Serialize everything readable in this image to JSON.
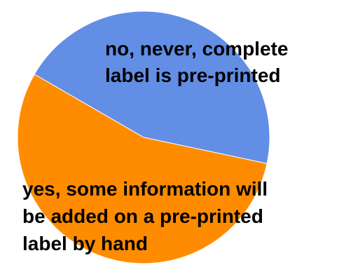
{
  "chart_data": {
    "type": "pie",
    "slices": [
      {
        "label_lines": [
          "no, never, complete",
          "label is pre-printed"
        ],
        "value": 45,
        "color": "#628ee5"
      },
      {
        "label_lines": [
          "yes, some information will",
          "be added on a pre-printed",
          "label by hand"
        ],
        "value": 55,
        "color": "#ff8c00"
      }
    ],
    "legend": "none",
    "grid": false
  }
}
